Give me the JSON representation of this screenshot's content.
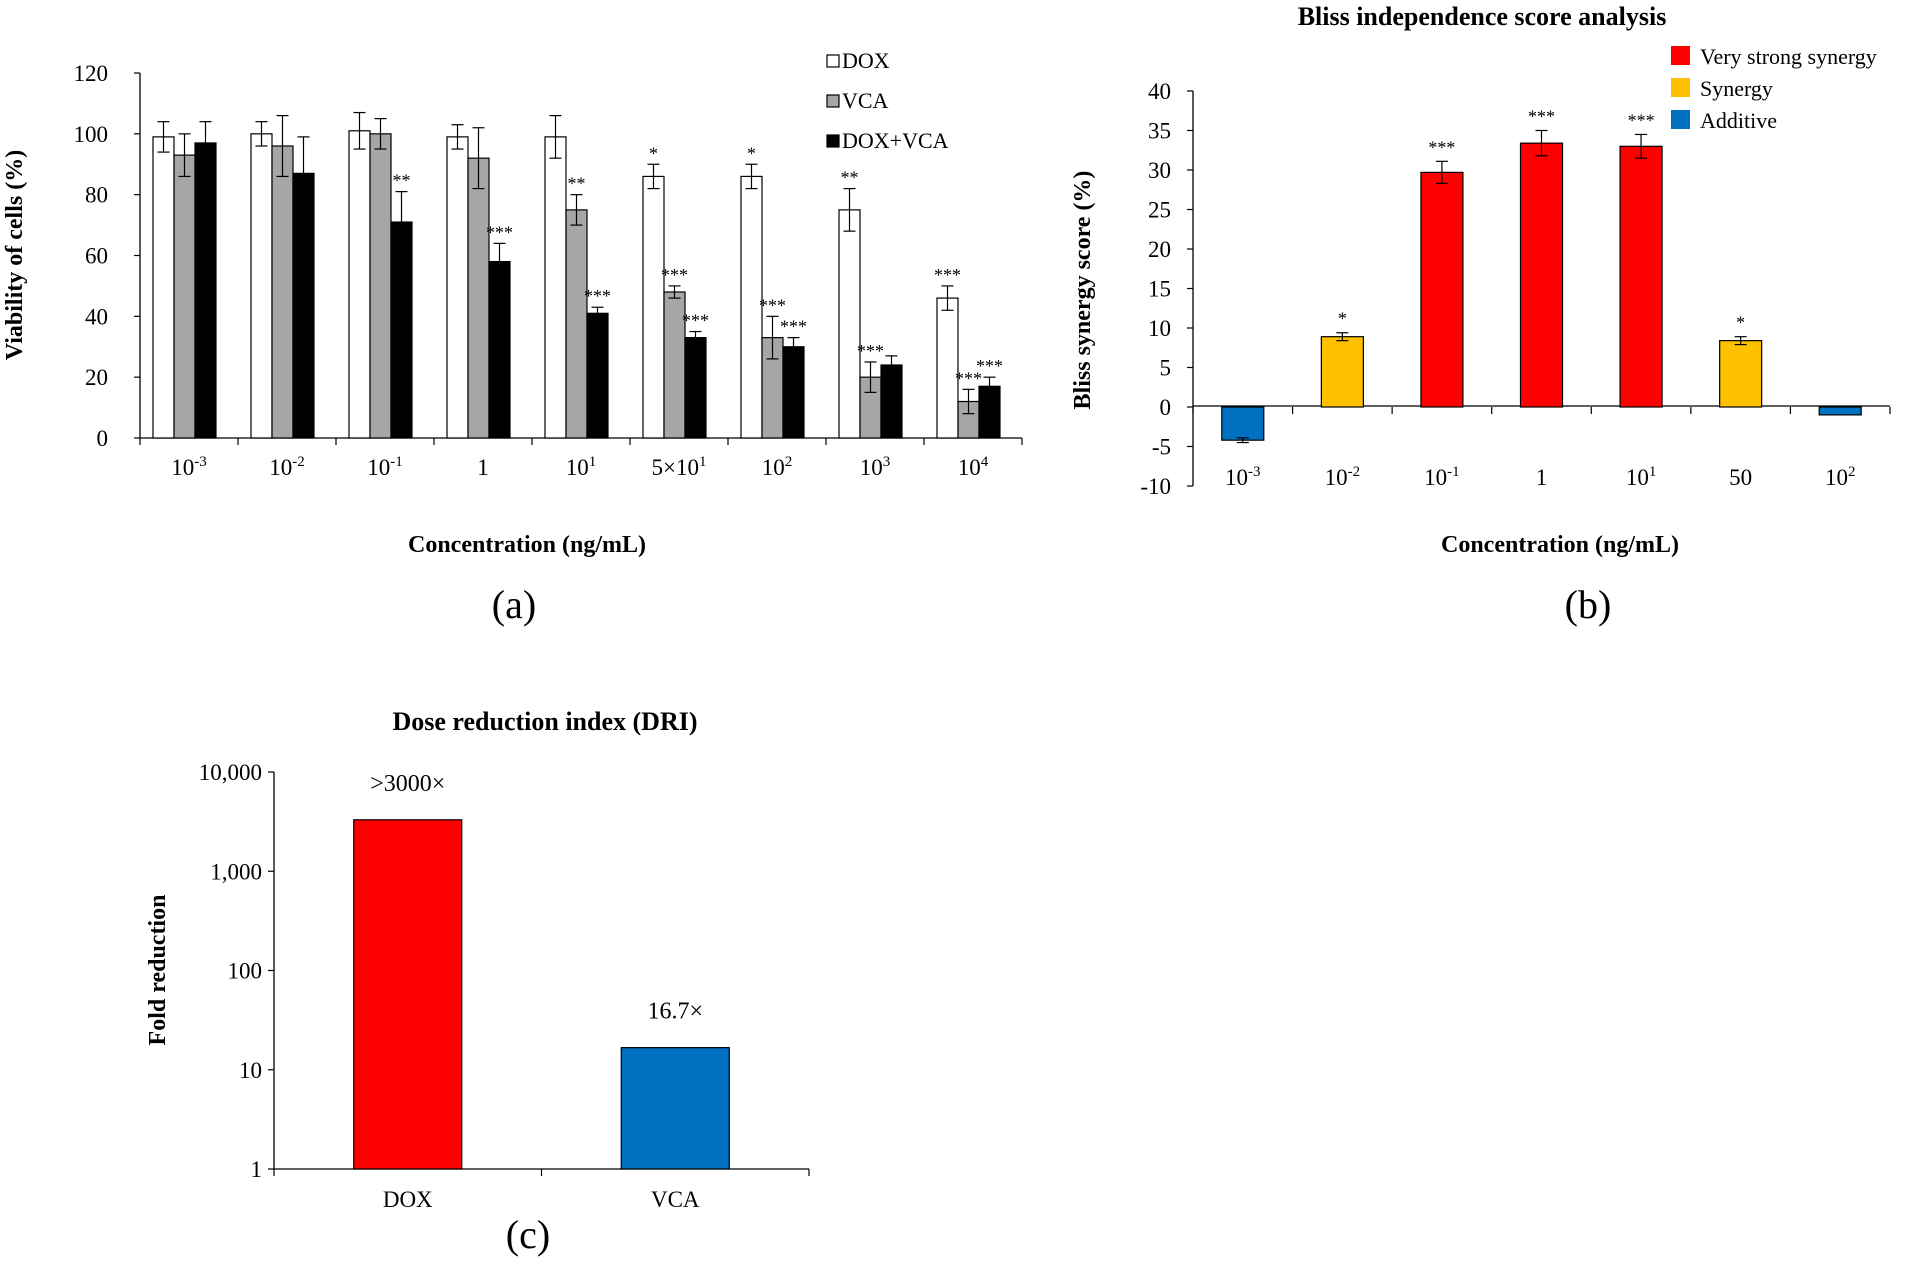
{
  "chart_data": [
    {
      "panel_label": "(a)",
      "type": "bar",
      "title": "",
      "xlabel": "Concentration (ng/mL)",
      "ylabel": "Viability of cells (%)",
      "ylim": [
        0,
        120
      ],
      "yticks": [
        "0",
        "20",
        "40",
        "60",
        "80",
        "100",
        "120"
      ],
      "categories": [
        {
          "base": "10",
          "exp": "-3"
        },
        {
          "base": "10",
          "exp": "-2"
        },
        {
          "base": "10",
          "exp": "-1"
        },
        {
          "base": "1",
          "exp": ""
        },
        {
          "base": "10",
          "exp": "1"
        },
        {
          "base": "5×10",
          "exp": "1"
        },
        {
          "base": "10",
          "exp": "2"
        },
        {
          "base": "10",
          "exp": "3"
        },
        {
          "base": "10",
          "exp": "4"
        }
      ],
      "series": [
        {
          "name": "DOX",
          "color": "#ffffff",
          "values": [
            99,
            100,
            101,
            99,
            99,
            86,
            86,
            75,
            46
          ],
          "errors": [
            5,
            4,
            6,
            4,
            7,
            4,
            4,
            7,
            4
          ],
          "significance": [
            "",
            "",
            "",
            "",
            "",
            "*",
            "*",
            "**",
            "***"
          ]
        },
        {
          "name": "VCA",
          "color": "#a6a6a6",
          "values": [
            93,
            96,
            100,
            92,
            75,
            48,
            33,
            20,
            12
          ],
          "errors": [
            7,
            10,
            5,
            10,
            5,
            2,
            7,
            5,
            4
          ],
          "significance": [
            "",
            "",
            "",
            "",
            "**",
            "***",
            "***",
            "***",
            "***"
          ]
        },
        {
          "name": "DOX+VCA",
          "color": "#000000",
          "values": [
            97,
            87,
            71,
            58,
            41,
            33,
            30,
            24,
            17
          ],
          "errors": [
            7,
            12,
            10,
            6,
            2,
            2,
            3,
            3,
            3
          ],
          "significance": [
            "",
            "",
            "**",
            "***",
            "***",
            "***",
            "***",
            "",
            "***"
          ]
        }
      ]
    },
    {
      "panel_label": "(b)",
      "type": "bar",
      "title": "Bliss independence score analysis",
      "xlabel": "Concentration (ng/mL)",
      "ylabel": "Bliss synergy score (%)",
      "ylim": [
        -10,
        40
      ],
      "yticks": [
        "-10",
        "-5",
        "0",
        "5",
        "10",
        "15",
        "20",
        "25",
        "30",
        "35",
        "40"
      ],
      "categories": [
        {
          "base": "10",
          "exp": "-3"
        },
        {
          "base": "10",
          "exp": "-2"
        },
        {
          "base": "10",
          "exp": "-1"
        },
        {
          "base": "1",
          "exp": ""
        },
        {
          "base": "10",
          "exp": "1"
        },
        {
          "base": "50",
          "exp": ""
        },
        {
          "base": "10",
          "exp": "2"
        }
      ],
      "values": [
        -4.2,
        8.9,
        29.7,
        33.4,
        33.0,
        8.4,
        -1.0
      ],
      "errors": [
        0.3,
        0.5,
        1.4,
        1.6,
        1.5,
        0.5,
        0
      ],
      "significance": [
        "",
        "*",
        "***",
        "***",
        "***",
        "*",
        ""
      ],
      "bar_class": [
        "Additive",
        "Synergy",
        "Very strong synergy",
        "Very strong synergy",
        "Very strong synergy",
        "Synergy",
        "Additive"
      ],
      "legend": [
        {
          "name": "Very strong synergy",
          "color": "#ff0000"
        },
        {
          "name": "Synergy",
          "color": "#ffc000"
        },
        {
          "name": "Additive",
          "color": "#0070c0"
        }
      ]
    },
    {
      "panel_label": "(c)",
      "type": "bar",
      "title": "Dose reduction index (DRI)",
      "xlabel": "",
      "ylabel": "Fold reduction",
      "yscale": "log",
      "ylim": [
        1,
        10000
      ],
      "yticks": [
        "1",
        "10",
        "100",
        "1,000",
        "10,000"
      ],
      "categories": [
        "DOX",
        "VCA"
      ],
      "values": [
        3300,
        16.7
      ],
      "value_labels": [
        ">3000×",
        "16.7×"
      ],
      "colors": [
        "#ff0000",
        "#0070c0"
      ]
    }
  ]
}
